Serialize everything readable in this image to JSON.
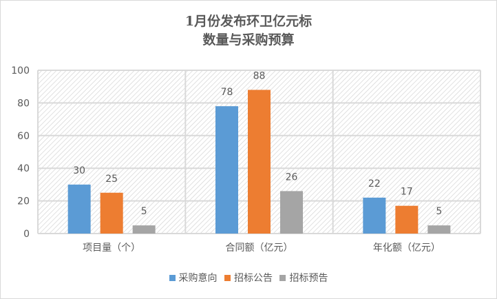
{
  "chart_data": {
    "type": "bar",
    "title": "1月份发布环卫亿元标",
    "subtitle": "数量与采购预算",
    "categories": [
      "项目量（个）",
      "合同额（亿元）",
      "年化额（亿元）"
    ],
    "series": [
      {
        "name": "采购意向",
        "values": [
          30,
          78,
          22
        ],
        "color": "#5b9bd5"
      },
      {
        "name": "招标公告",
        "values": [
          25,
          88,
          17
        ],
        "color": "#ed7d31"
      },
      {
        "name": "招标预告",
        "values": [
          5,
          26,
          5
        ],
        "color": "#a5a5a5"
      }
    ],
    "ylim": [
      0,
      100
    ],
    "yticks": [
      "0",
      "20",
      "40",
      "60",
      "80",
      "100"
    ],
    "grid": true,
    "background_pattern": "diagonal-hatch",
    "data_labels": true,
    "legend_position": "bottom"
  }
}
